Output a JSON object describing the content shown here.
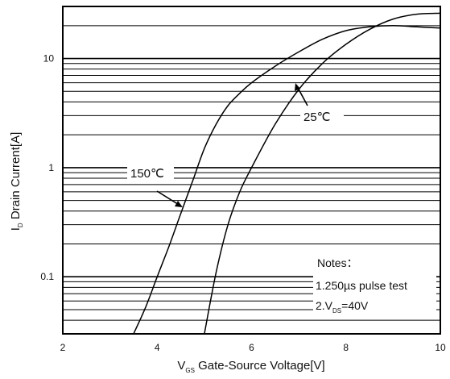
{
  "chart_data": {
    "type": "line",
    "xlabel": {
      "main": "V",
      "sub": "GS",
      "rest": " Gate-Source Voltage[V]"
    },
    "ylabel": {
      "main": "I",
      "sub": "D",
      "rest": " Drain Current[A]"
    },
    "x_ticks": [
      {
        "value": 2,
        "label": "2"
      },
      {
        "value": 4,
        "label": "4"
      },
      {
        "value": 6,
        "label": "6"
      },
      {
        "value": 8,
        "label": "8"
      },
      {
        "value": 10,
        "label": "10"
      }
    ],
    "y_ticks": [
      {
        "value": 0.1,
        "label": "0.1"
      },
      {
        "value": 1,
        "label": "1"
      },
      {
        "value": 10,
        "label": "10"
      }
    ],
    "xlim": [
      2,
      10
    ],
    "ylim": [
      0.03,
      30
    ],
    "yscale": "log",
    "grid": "horizontal log grid lines",
    "series": [
      {
        "name": "150℃",
        "x": [
          3.5,
          3.75,
          4.0,
          4.25,
          4.5,
          4.75,
          5.0,
          5.25,
          5.5,
          5.75,
          6.0,
          6.5,
          7.0,
          7.5,
          8.0,
          8.5,
          9.0,
          9.5,
          10.0
        ],
        "y": [
          0.03,
          0.052,
          0.1,
          0.19,
          0.38,
          0.75,
          1.5,
          2.5,
          3.7,
          4.8,
          6.0,
          8.5,
          11.5,
          15.0,
          18.0,
          19.5,
          20.0,
          19.5,
          19.0
        ]
      },
      {
        "name": "25℃",
        "x": [
          5.0,
          5.25,
          5.5,
          5.75,
          6.0,
          6.5,
          7.0,
          7.5,
          8.0,
          8.5,
          9.0,
          9.5,
          10.0
        ],
        "y": [
          0.03,
          0.11,
          0.3,
          0.6,
          1.0,
          2.5,
          5.2,
          9.0,
          13.5,
          18.5,
          23.0,
          25.5,
          26.0
        ]
      }
    ],
    "annotations": [
      {
        "text": "150℃",
        "series": 0
      },
      {
        "text": "25℃",
        "series": 1
      }
    ],
    "notes": {
      "title": "Notes：",
      "line1": "1.250µs pulse test",
      "line2_prefix": "2.V",
      "line2_sub": "DS",
      "line2_suffix": "=40V"
    }
  }
}
